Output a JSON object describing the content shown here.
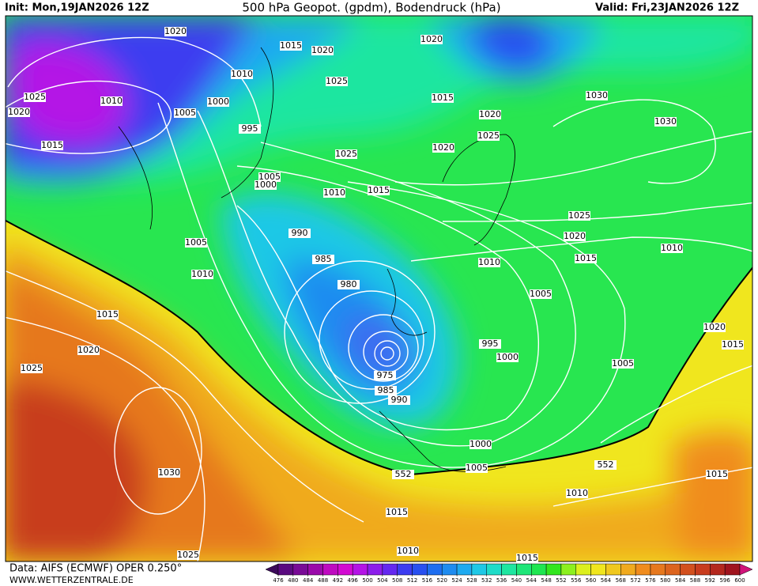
{
  "header": {
    "init": "Init: Mon,19JAN2026 12Z",
    "title": "500 hPa Geopot. (gpdm), Bodendruck (hPa)",
    "valid": "Valid: Fri,23JAN2026 12Z"
  },
  "footer": {
    "data_source": "Data: AIFS (ECMWF) OPER 0.250°",
    "website": "WWW.WETTERZENTRALE.DE"
  },
  "isobar_labels": [
    1020,
    1015,
    1020,
    1010,
    1025,
    1025,
    1010,
    1000,
    1020,
    1005,
    995,
    1015,
    1025,
    1005,
    1000,
    1010,
    1015,
    990,
    1005,
    985,
    1010,
    980,
    1015,
    1020,
    1025,
    975,
    985,
    990,
    1030,
    1025,
    1015,
    1010,
    552,
    1005,
    1000,
    1000,
    995,
    1005,
    1010,
    1015,
    1010,
    1020,
    1025,
    1020,
    1015,
    1020,
    1025,
    1020,
    1030,
    1030,
    1005,
    1020,
    1015,
    552,
    1015,
    1010,
    1015
  ],
  "colorbar": {
    "ticks": [
      476,
      480,
      484,
      488,
      492,
      496,
      500,
      504,
      508,
      512,
      516,
      520,
      524,
      528,
      532,
      536,
      540,
      544,
      548,
      552,
      556,
      560,
      564,
      568,
      572,
      576,
      580,
      584,
      588,
      592,
      596,
      600
    ],
    "colors": [
      "#3c0a5a",
      "#5a0a80",
      "#780a96",
      "#9a0aaa",
      "#be0ac0",
      "#d20ad2",
      "#b414e6",
      "#8c1eeb",
      "#6428f0",
      "#3c3cf0",
      "#2850f0",
      "#1e6ef0",
      "#1e8cf0",
      "#1eaaf0",
      "#1ec8e6",
      "#1edcc8",
      "#1ee6a0",
      "#1ee678",
      "#1ee650",
      "#32e61e",
      "#8cf01e",
      "#dcf01e",
      "#f0e61e",
      "#f0c81e",
      "#f0aa1e",
      "#f08c1e",
      "#e6781e",
      "#dc641e",
      "#d2501e",
      "#c83c1e",
      "#b4281e",
      "#a0141e",
      "#d0147a"
    ]
  }
}
